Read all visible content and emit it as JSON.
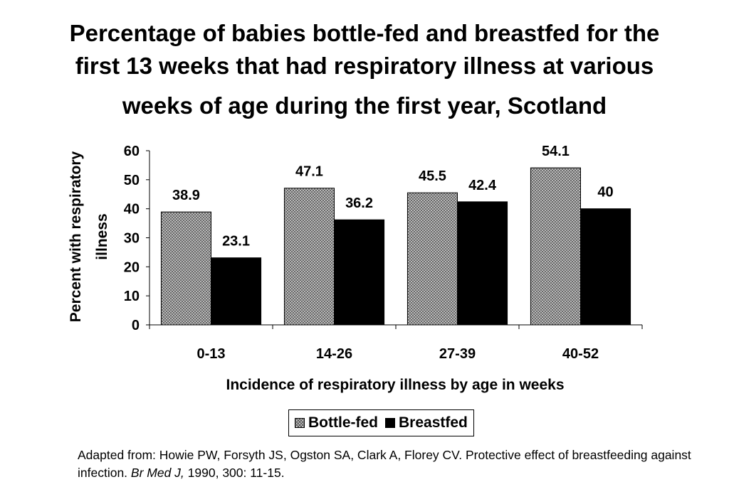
{
  "chart_data": {
    "type": "bar",
    "title_lines": [
      "Percentage of babies bottle-fed and breastfed for the",
      "first 13 weeks that had respiratory illness at various",
      "weeks of age during the first year, Scotland"
    ],
    "categories": [
      "0-13",
      "14-26",
      "27-39",
      "40-52"
    ],
    "series": [
      {
        "name": "Bottle-fed",
        "values": [
          38.9,
          47.1,
          45.5,
          54.1
        ],
        "value_labels": [
          "38.9",
          "47.1",
          "45.5",
          "54.1"
        ]
      },
      {
        "name": "Breastfed",
        "values": [
          23.1,
          36.2,
          42.4,
          40
        ],
        "value_labels": [
          "23.1",
          "36.2",
          "42.4",
          "40"
        ]
      }
    ],
    "xlabel": "Incidence of respiratory illness by age in weeks",
    "ylabel_lines": [
      "Percent with respiratory",
      "illness"
    ],
    "ylim": [
      0,
      60
    ],
    "yticks": [
      0,
      10,
      20,
      30,
      40,
      50,
      60
    ],
    "grid": false,
    "legend_position": "bottom-center"
  },
  "colors": {
    "bottle_fed_fill": "#cfcfcf",
    "bottle_fed_pattern": "#555555",
    "breastfed_fill": "#000000"
  },
  "source": {
    "prefix": "Adapted from: Howie PW, Forsyth JS, Ogston SA, Clark A, Florey CV. Protective effect of breastfeeding against infection. ",
    "journal": "Br Med J,",
    "suffix": " 1990, 300: 11-15."
  }
}
